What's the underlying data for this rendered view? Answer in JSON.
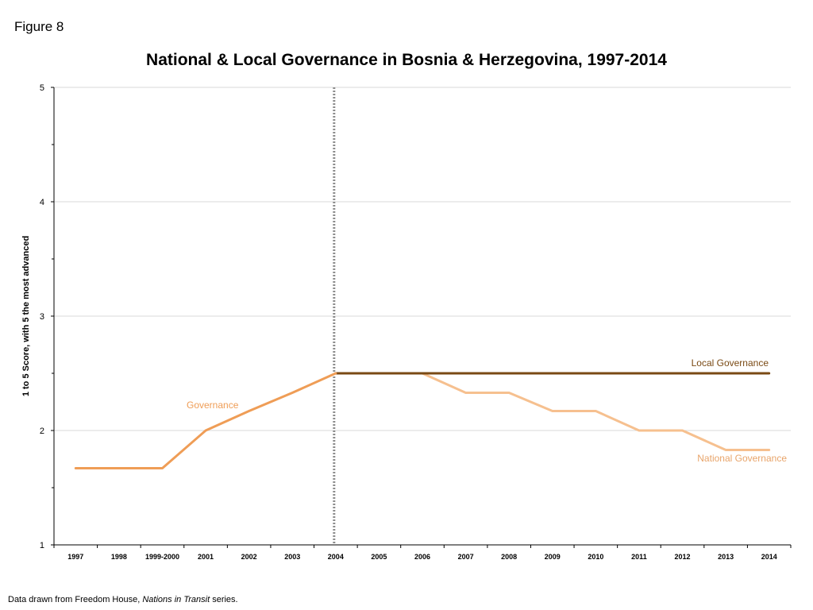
{
  "figure_label": "Figure 8",
  "footer": {
    "prefix": "Data drawn from Freedom House, ",
    "source": "Nations in Transit",
    "suffix": " series."
  },
  "colors": {
    "governance": "#ef9d56",
    "local": "#7a4a14",
    "national": "#f6c08f",
    "grid": "#d9d9d9",
    "axis": "#000000",
    "divider": "#8c8c8c"
  },
  "chart_data": {
    "type": "line",
    "title": "National & Local Governance in Bosnia & Herzegovina, 1997-2014",
    "ylabel": "1 to 5 Score, with 5 the most advanced",
    "xlabel": "",
    "ylim": [
      1,
      5
    ],
    "yticks": [
      1,
      2,
      3,
      4,
      5
    ],
    "grid": true,
    "categories": [
      "1997",
      "1998",
      "1999-2000",
      "2001",
      "2002",
      "2003",
      "2004",
      "2005",
      "2006",
      "2007",
      "2008",
      "2009",
      "2010",
      "2011",
      "2012",
      "2013",
      "2014"
    ],
    "divider_at": "2004",
    "series": [
      {
        "name": "Governance",
        "color_key": "governance",
        "values": [
          1.67,
          1.67,
          1.67,
          2.0,
          2.17,
          2.33,
          2.5,
          null,
          null,
          null,
          null,
          null,
          null,
          null,
          null,
          null,
          null
        ]
      },
      {
        "name": "Local Governance",
        "color_key": "local",
        "values": [
          null,
          null,
          null,
          null,
          null,
          null,
          2.5,
          2.5,
          2.5,
          2.5,
          2.5,
          2.5,
          2.5,
          2.5,
          2.5,
          2.5,
          2.5
        ]
      },
      {
        "name": "National Governance",
        "color_key": "national",
        "values": [
          null,
          null,
          null,
          null,
          null,
          null,
          2.5,
          2.5,
          2.5,
          2.33,
          2.33,
          2.17,
          2.17,
          2.0,
          2.0,
          1.83,
          1.83
        ]
      }
    ]
  }
}
